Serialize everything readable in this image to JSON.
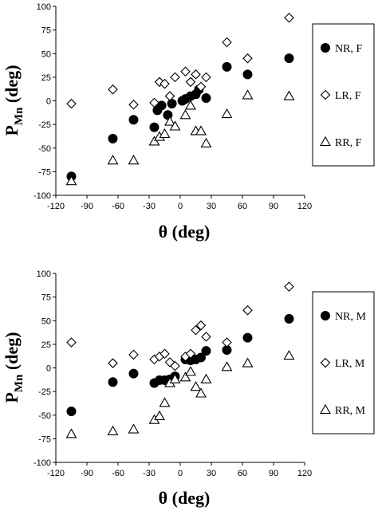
{
  "chart_data": [
    {
      "type": "scatter",
      "xlabel": "θ  (deg)",
      "ylabel_main": "P",
      "ylabel_sub": "Mn",
      "ylabel_unit": " (deg)",
      "xlim": [
        -120,
        120
      ],
      "ylim": [
        -100,
        100
      ],
      "xticks": [
        -120,
        -90,
        -60,
        -30,
        0,
        30,
        60,
        90,
        120
      ],
      "yticks": [
        -100,
        -75,
        -50,
        -25,
        0,
        25,
        50,
        75,
        100
      ],
      "grid": false,
      "legend_position": "right",
      "series": [
        {
          "name": "NR, F",
          "marker": "circle-filled",
          "points": [
            [
              -105,
              -80
            ],
            [
              -65,
              -40
            ],
            [
              -45,
              -20
            ],
            [
              -25,
              -28
            ],
            [
              -22,
              -10
            ],
            [
              -18,
              -5
            ],
            [
              -12,
              -15
            ],
            [
              -8,
              -3
            ],
            [
              2,
              0
            ],
            [
              5,
              2
            ],
            [
              10,
              5
            ],
            [
              15,
              7
            ],
            [
              18,
              12
            ],
            [
              25,
              3
            ],
            [
              45,
              36
            ],
            [
              65,
              28
            ],
            [
              105,
              45
            ]
          ]
        },
        {
          "name": "LR, F",
          "marker": "diamond-open",
          "points": [
            [
              -105,
              -3
            ],
            [
              -65,
              12
            ],
            [
              -45,
              -4
            ],
            [
              -25,
              -2
            ],
            [
              -20,
              20
            ],
            [
              -15,
              18
            ],
            [
              -10,
              5
            ],
            [
              -5,
              25
            ],
            [
              5,
              31
            ],
            [
              10,
              20
            ],
            [
              15,
              28
            ],
            [
              20,
              15
            ],
            [
              25,
              25
            ],
            [
              45,
              62
            ],
            [
              65,
              45
            ],
            [
              105,
              88
            ]
          ]
        },
        {
          "name": "RR, F",
          "marker": "triangle-open",
          "points": [
            [
              -105,
              -85
            ],
            [
              -65,
              -63
            ],
            [
              -45,
              -63
            ],
            [
              -25,
              -43
            ],
            [
              -20,
              -38
            ],
            [
              -15,
              -35
            ],
            [
              -10,
              -22
            ],
            [
              -5,
              -27
            ],
            [
              5,
              -15
            ],
            [
              10,
              -5
            ],
            [
              15,
              -32
            ],
            [
              20,
              -32
            ],
            [
              25,
              -45
            ],
            [
              45,
              -14
            ],
            [
              65,
              6
            ],
            [
              105,
              5
            ]
          ]
        }
      ]
    },
    {
      "type": "scatter",
      "xlabel": "θ  (deg)",
      "ylabel_main": "P",
      "ylabel_sub": "Mn",
      "ylabel_unit": " (deg)",
      "xlim": [
        -120,
        120
      ],
      "ylim": [
        -100,
        100
      ],
      "xticks": [
        -120,
        -90,
        -60,
        -30,
        0,
        30,
        60,
        90,
        120
      ],
      "yticks": [
        -100,
        -75,
        -50,
        -25,
        0,
        25,
        50,
        75,
        100
      ],
      "grid": false,
      "legend_position": "right",
      "series": [
        {
          "name": "NR, M",
          "marker": "circle-filled",
          "points": [
            [
              -105,
              -46
            ],
            [
              -65,
              -15
            ],
            [
              -45,
              -6
            ],
            [
              -25,
              -16
            ],
            [
              -20,
              -13
            ],
            [
              -15,
              -13
            ],
            [
              -10,
              -12
            ],
            [
              -5,
              -9
            ],
            [
              5,
              9
            ],
            [
              10,
              8
            ],
            [
              15,
              9
            ],
            [
              20,
              11
            ],
            [
              25,
              18
            ],
            [
              45,
              19
            ],
            [
              65,
              32
            ],
            [
              105,
              52
            ]
          ]
        },
        {
          "name": "LR, M",
          "marker": "diamond-open",
          "points": [
            [
              -105,
              27
            ],
            [
              -65,
              5
            ],
            [
              -45,
              14
            ],
            [
              -25,
              9
            ],
            [
              -20,
              12
            ],
            [
              -15,
              15
            ],
            [
              -10,
              6
            ],
            [
              -5,
              2
            ],
            [
              5,
              12
            ],
            [
              10,
              15
            ],
            [
              15,
              40
            ],
            [
              20,
              45
            ],
            [
              25,
              33
            ],
            [
              45,
              27
            ],
            [
              65,
              61
            ],
            [
              105,
              86
            ]
          ]
        },
        {
          "name": "RR, M",
          "marker": "triangle-open",
          "points": [
            [
              -105,
              -70
            ],
            [
              -65,
              -67
            ],
            [
              -45,
              -65
            ],
            [
              -25,
              -55
            ],
            [
              -20,
              -51
            ],
            [
              -15,
              -37
            ],
            [
              -10,
              -16
            ],
            [
              -5,
              -12
            ],
            [
              5,
              -10
            ],
            [
              10,
              -4
            ],
            [
              15,
              -20
            ],
            [
              20,
              -27
            ],
            [
              25,
              -12
            ],
            [
              45,
              1
            ],
            [
              65,
              5
            ],
            [
              105,
              13
            ]
          ]
        }
      ]
    }
  ]
}
